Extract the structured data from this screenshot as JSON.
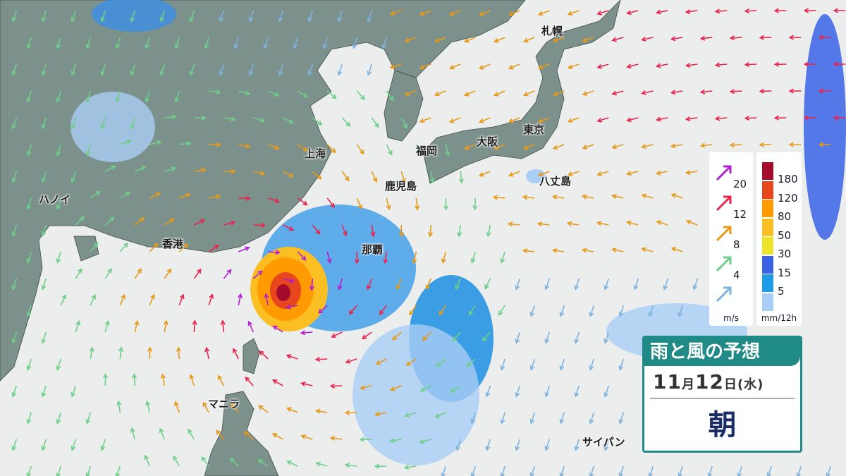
{
  "cities": [
    {
      "name": "札幌",
      "id": "sapporo"
    },
    {
      "name": "東京",
      "id": "tokyo"
    },
    {
      "name": "大阪",
      "id": "osaka"
    },
    {
      "name": "福岡",
      "id": "fukuoka"
    },
    {
      "name": "上海",
      "id": "shanghai"
    },
    {
      "name": "八丈島",
      "id": "hachijojima"
    },
    {
      "name": "鹿児島",
      "id": "kagoshima"
    },
    {
      "name": "ハノイ",
      "id": "hanoi"
    },
    {
      "name": "香港",
      "id": "hongkong"
    },
    {
      "name": "那覇",
      "id": "naha"
    },
    {
      "name": "マニラ",
      "id": "manila"
    },
    {
      "name": "サイパン",
      "id": "saipan"
    }
  ],
  "wind_legend": {
    "unit": "m/s",
    "items": [
      {
        "label": "20",
        "color": "#b21fd0"
      },
      {
        "label": "12",
        "color": "#e8244f"
      },
      {
        "label": "8",
        "color": "#e69a1a"
      },
      {
        "label": "4",
        "color": "#6fce8a"
      },
      {
        "label": "",
        "color": "#7fb2dc"
      }
    ]
  },
  "rain_legend": {
    "unit": "mm/12h",
    "colors": [
      "#a50b2c",
      "#e8461c",
      "#ff9a00",
      "#fbbf24",
      "#ece52c",
      "#3b63e6",
      "#1c9be8",
      "#a9cdf4"
    ],
    "labels": [
      "180",
      "120",
      "80",
      "50",
      "30",
      "15",
      "5"
    ]
  },
  "title": {
    "heading": "雨と風の予想",
    "month": "11",
    "month_unit": "月",
    "day": "12",
    "day_unit": "日",
    "weekday": "(水)",
    "time_of_day": "朝"
  },
  "colors": {
    "land": "#7d918c",
    "ocean": "#eceeee",
    "panel_accent": "#1f8a86"
  }
}
